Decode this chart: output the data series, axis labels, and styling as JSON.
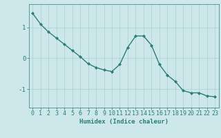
{
  "x": [
    0,
    1,
    2,
    3,
    4,
    5,
    6,
    7,
    8,
    9,
    10,
    11,
    12,
    13,
    14,
    15,
    16,
    17,
    18,
    19,
    20,
    21,
    22,
    23
  ],
  "y": [
    1.45,
    1.1,
    0.85,
    0.65,
    0.45,
    0.25,
    0.05,
    -0.18,
    -0.3,
    -0.38,
    -0.43,
    -0.2,
    0.35,
    0.72,
    0.72,
    0.42,
    -0.2,
    -0.55,
    -0.75,
    -1.05,
    -1.12,
    -1.12,
    -1.22,
    -1.25
  ],
  "line_color": "#2d7e78",
  "marker": "D",
  "marker_size": 2.2,
  "bg_color": "#cce8e8",
  "grid_color": "#aed0d0",
  "xlabel": "Humidex (Indice chaleur)",
  "xlim": [
    -0.5,
    23.5
  ],
  "ylim": [
    -1.6,
    1.75
  ],
  "yticks": [
    -1,
    0,
    1
  ],
  "xticks": [
    0,
    1,
    2,
    3,
    4,
    5,
    6,
    7,
    8,
    9,
    10,
    11,
    12,
    13,
    14,
    15,
    16,
    17,
    18,
    19,
    20,
    21,
    22,
    23
  ],
  "xlabel_fontsize": 6.5,
  "tick_fontsize": 6,
  "line_width": 1.0
}
